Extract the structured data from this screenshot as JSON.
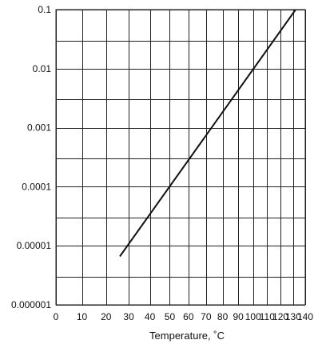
{
  "chart_data": {
    "type": "line",
    "title": "",
    "xlabel": "Temperature, ˚C",
    "ylabel": "",
    "xscale": "reciprocal",
    "yscale": "log",
    "grid": true,
    "legend": "none",
    "xlim": [
      0,
      140
    ],
    "ylim": [
      1e-06,
      0.1
    ],
    "x_tick_labels": [
      "0",
      "10",
      "20",
      "30",
      "40",
      "50",
      "60",
      "70",
      "80",
      "90",
      "100",
      "110",
      "120",
      "130",
      "140"
    ],
    "y_tick_labels": [
      "0.000001",
      "0.00001",
      "0.0001",
      "0.001",
      "0.01",
      "0.1"
    ],
    "y_ticks": [
      1e-06,
      1e-05,
      0.0001,
      0.001,
      0.01,
      0.1
    ],
    "y_minor_ticks": [
      3e-06,
      3e-05,
      0.0003,
      0.003,
      0.03
    ],
    "series": [
      {
        "x": [
          26,
          132
        ],
        "y": [
          6.6e-06,
          0.1
        ]
      }
    ],
    "colors": {
      "line": "#111111",
      "grid": "#222222",
      "background": "#ffffff"
    }
  }
}
